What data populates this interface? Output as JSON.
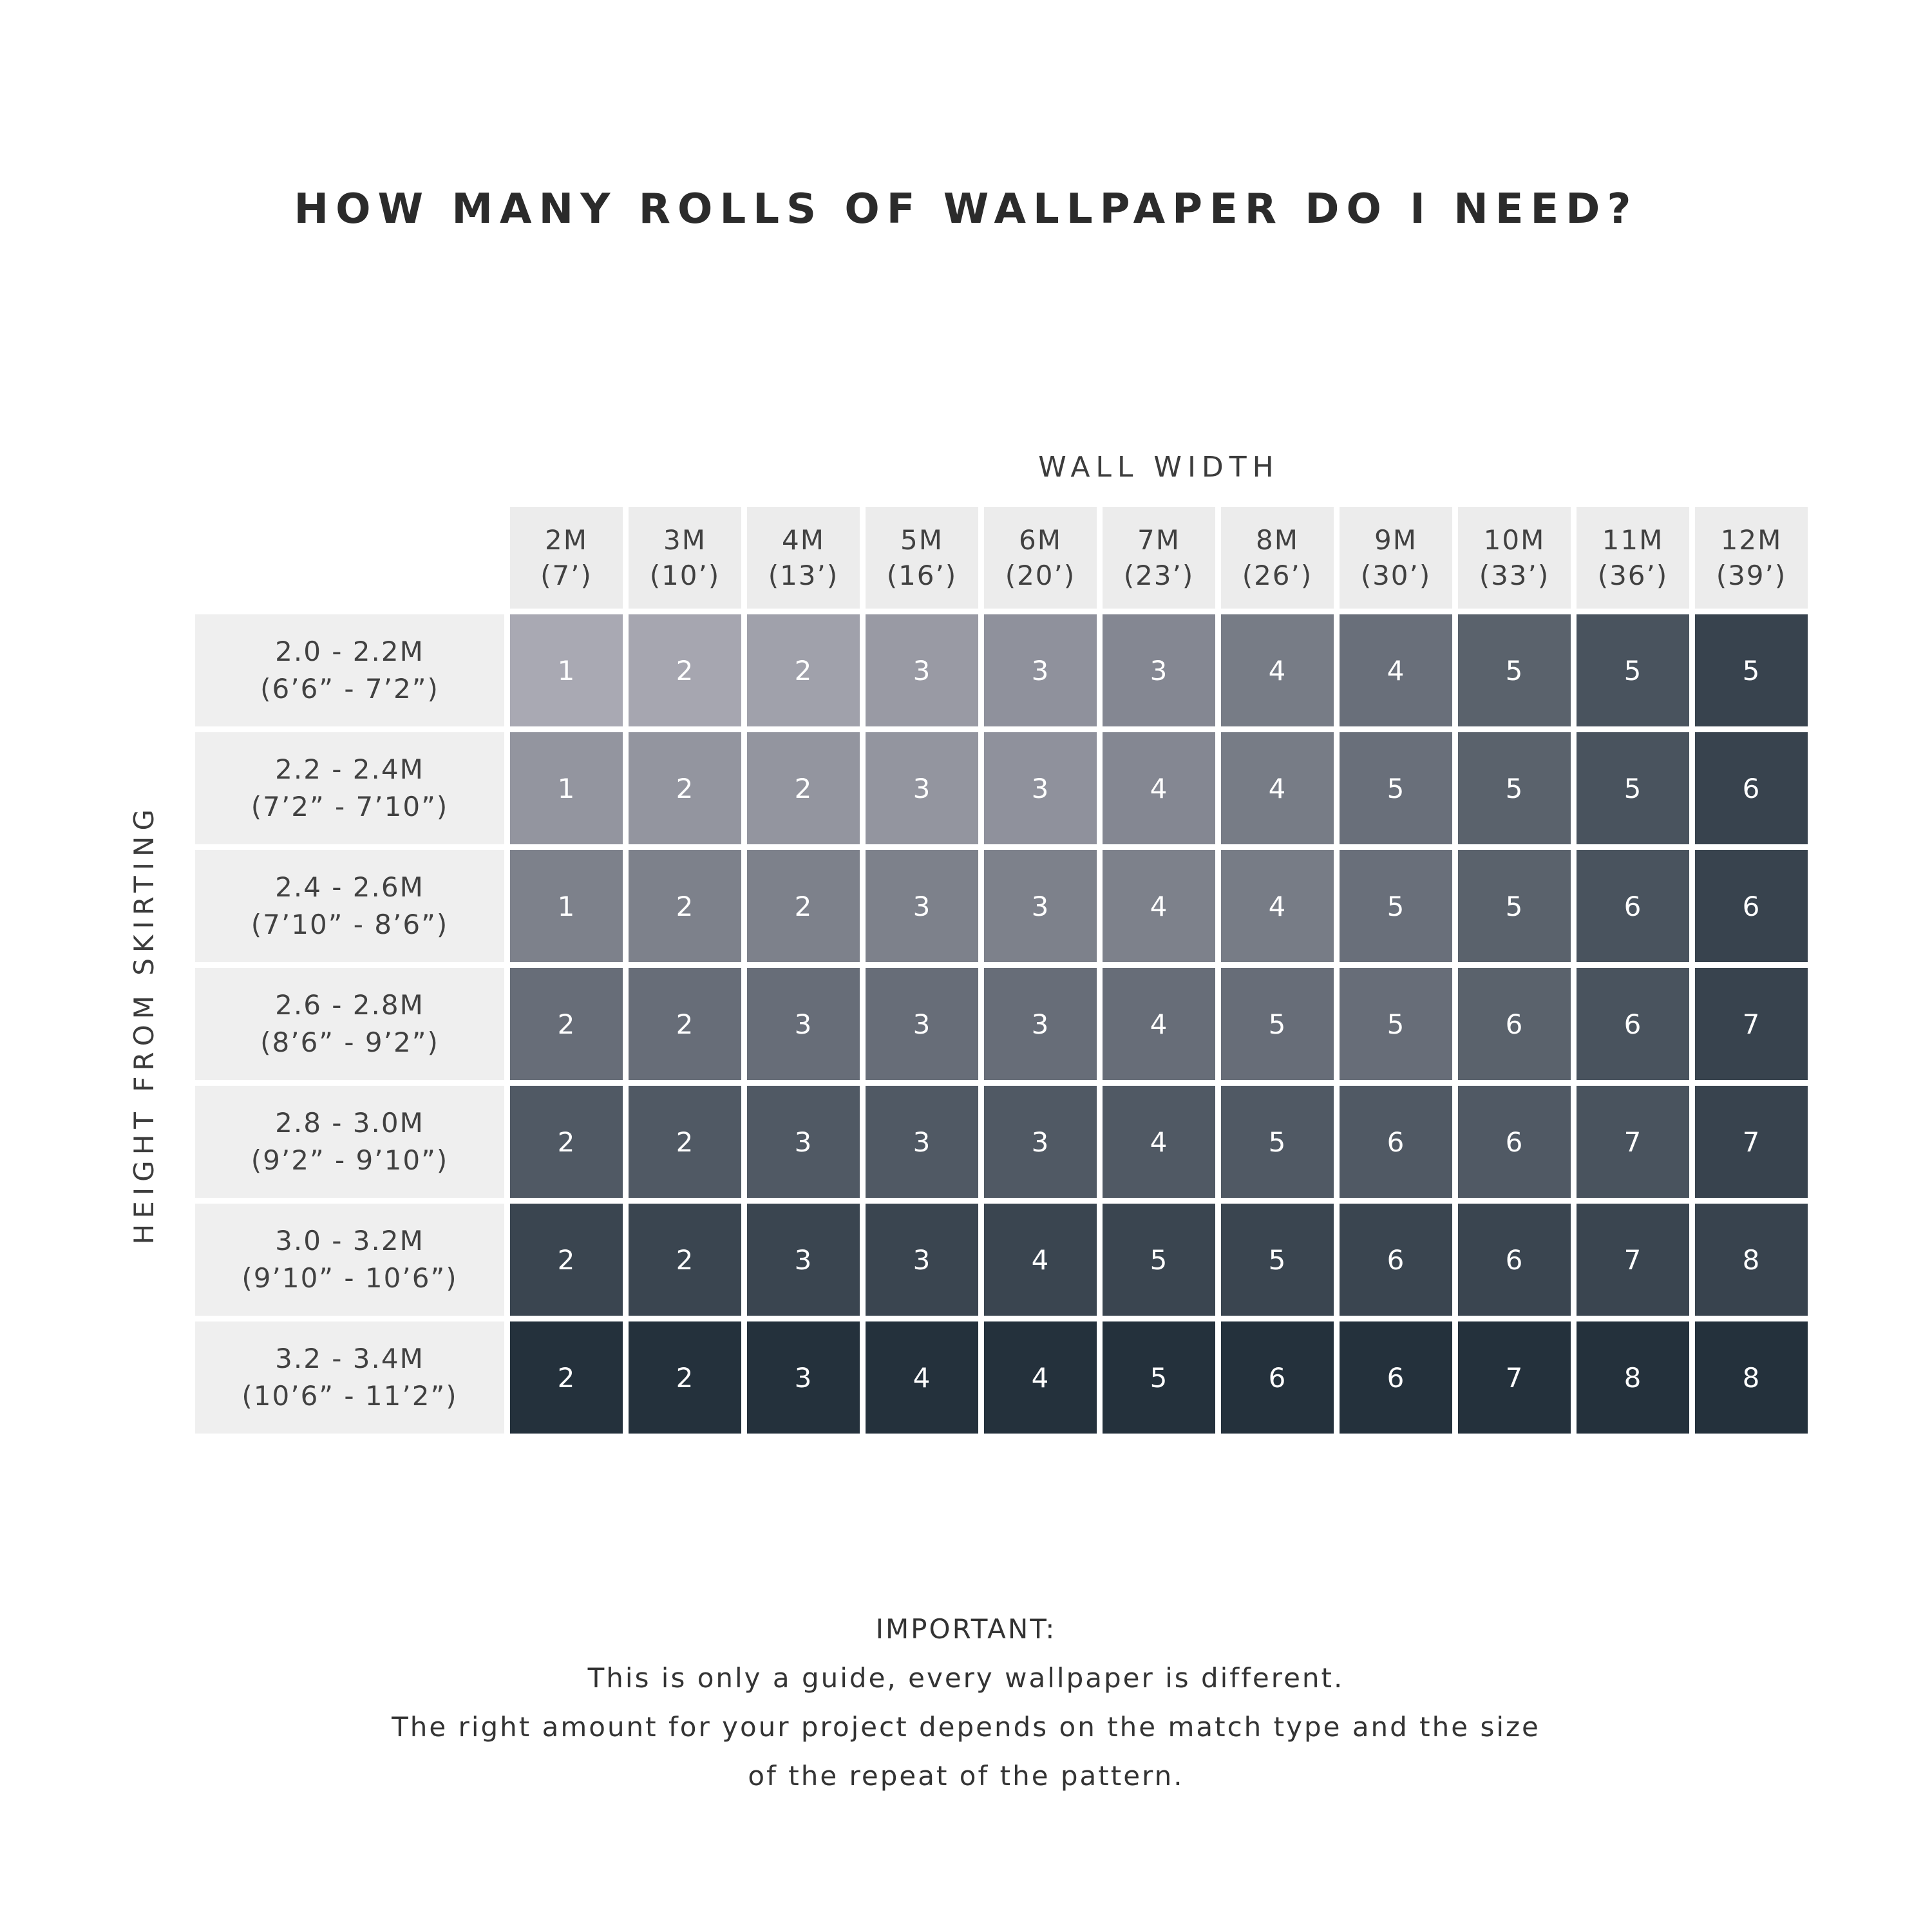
{
  "chart_data": {
    "type": "heatmap",
    "title": "HOW MANY ROLLS OF WALLPAPER DO I NEED?",
    "x_group_label": "WALL WIDTH",
    "y_group_label": "HEIGHT FROM SKIRTING",
    "columns": [
      {
        "label": "2M",
        "sub": "(7’)"
      },
      {
        "label": "3M",
        "sub": "(10’)"
      },
      {
        "label": "4M",
        "sub": "(13’)"
      },
      {
        "label": "5M",
        "sub": "(16’)"
      },
      {
        "label": "6M",
        "sub": "(20’)"
      },
      {
        "label": "7M",
        "sub": "(23’)"
      },
      {
        "label": "8M",
        "sub": "(26’)"
      },
      {
        "label": "9M",
        "sub": "(30’)"
      },
      {
        "label": "10M",
        "sub": "(33’)"
      },
      {
        "label": "11M",
        "sub": "(36’)"
      },
      {
        "label": "12M",
        "sub": "(39’)"
      }
    ],
    "rows": [
      {
        "label": "2.0 - 2.2M",
        "sub": "(6’6” - 7’2”)",
        "values": [
          1,
          2,
          2,
          3,
          3,
          3,
          4,
          4,
          5,
          5,
          5
        ]
      },
      {
        "label": "2.2 - 2.4M",
        "sub": "(7’2” - 7’10”)",
        "values": [
          1,
          2,
          2,
          3,
          3,
          4,
          4,
          5,
          5,
          5,
          6
        ]
      },
      {
        "label": "2.4 - 2.6M",
        "sub": "(7’10” - 8’6”)",
        "values": [
          1,
          2,
          2,
          3,
          3,
          4,
          4,
          5,
          5,
          6,
          6
        ]
      },
      {
        "label": "2.6 - 2.8M",
        "sub": "(8’6” - 9’2”)",
        "values": [
          2,
          2,
          3,
          3,
          3,
          4,
          5,
          5,
          6,
          6,
          7
        ]
      },
      {
        "label": "2.8 - 3.0M",
        "sub": "(9’2” - 9’10”)",
        "values": [
          2,
          2,
          3,
          3,
          3,
          4,
          5,
          6,
          6,
          7,
          7
        ]
      },
      {
        "label": "3.0 - 3.2M",
        "sub": "(9’10” - 10’6”)",
        "values": [
          2,
          2,
          3,
          3,
          4,
          5,
          5,
          6,
          6,
          7,
          8
        ]
      },
      {
        "label": "3.2 - 3.4M",
        "sub": "(10’6” - 11’2”)",
        "values": [
          2,
          2,
          3,
          4,
          4,
          5,
          6,
          6,
          7,
          8,
          8
        ]
      }
    ]
  },
  "footer": {
    "heading": "IMPORTANT:",
    "lines": [
      "This is only a guide, every wallpaper is different.",
      "The right amount for your project depends on the match type and the size",
      "of the repeat of the pattern."
    ]
  },
  "colors": {
    "cell_light": "#a9a9b3",
    "cell_dark": "#24313c",
    "header_bg": "#ececec",
    "row_label_bg": "#efefef",
    "value_text": "#ffffff",
    "text_dark": "#2e2e2e"
  }
}
